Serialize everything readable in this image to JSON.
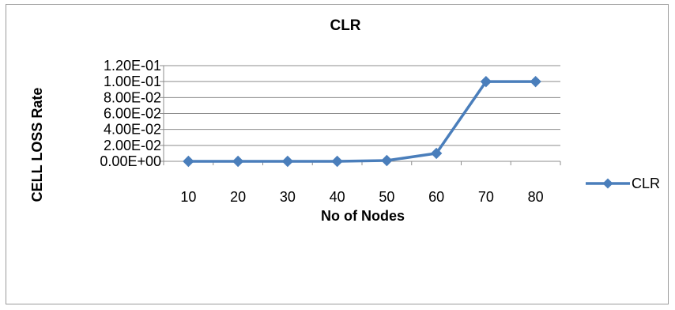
{
  "chart_data": {
    "type": "line",
    "title": "CLR",
    "xlabel": "No of Nodes",
    "ylabel": "CELL LOSS Rate",
    "categories": [
      "10",
      "20",
      "30",
      "40",
      "50",
      "60",
      "70",
      "80"
    ],
    "yticks": [
      "0.00E+00",
      "2.00E-02",
      "4.00E-02",
      "6.00E-02",
      "8.00E-02",
      "1.00E-01",
      "1.20E-01"
    ],
    "ylim": [
      0,
      0.12
    ],
    "series": [
      {
        "name": "CLR",
        "values": [
          0,
          0,
          0,
          0,
          0.001,
          0.01,
          0.1,
          0.1
        ],
        "color": "#4a7ebb",
        "marker": "diamond"
      }
    ],
    "legend": "right",
    "grid": true
  }
}
